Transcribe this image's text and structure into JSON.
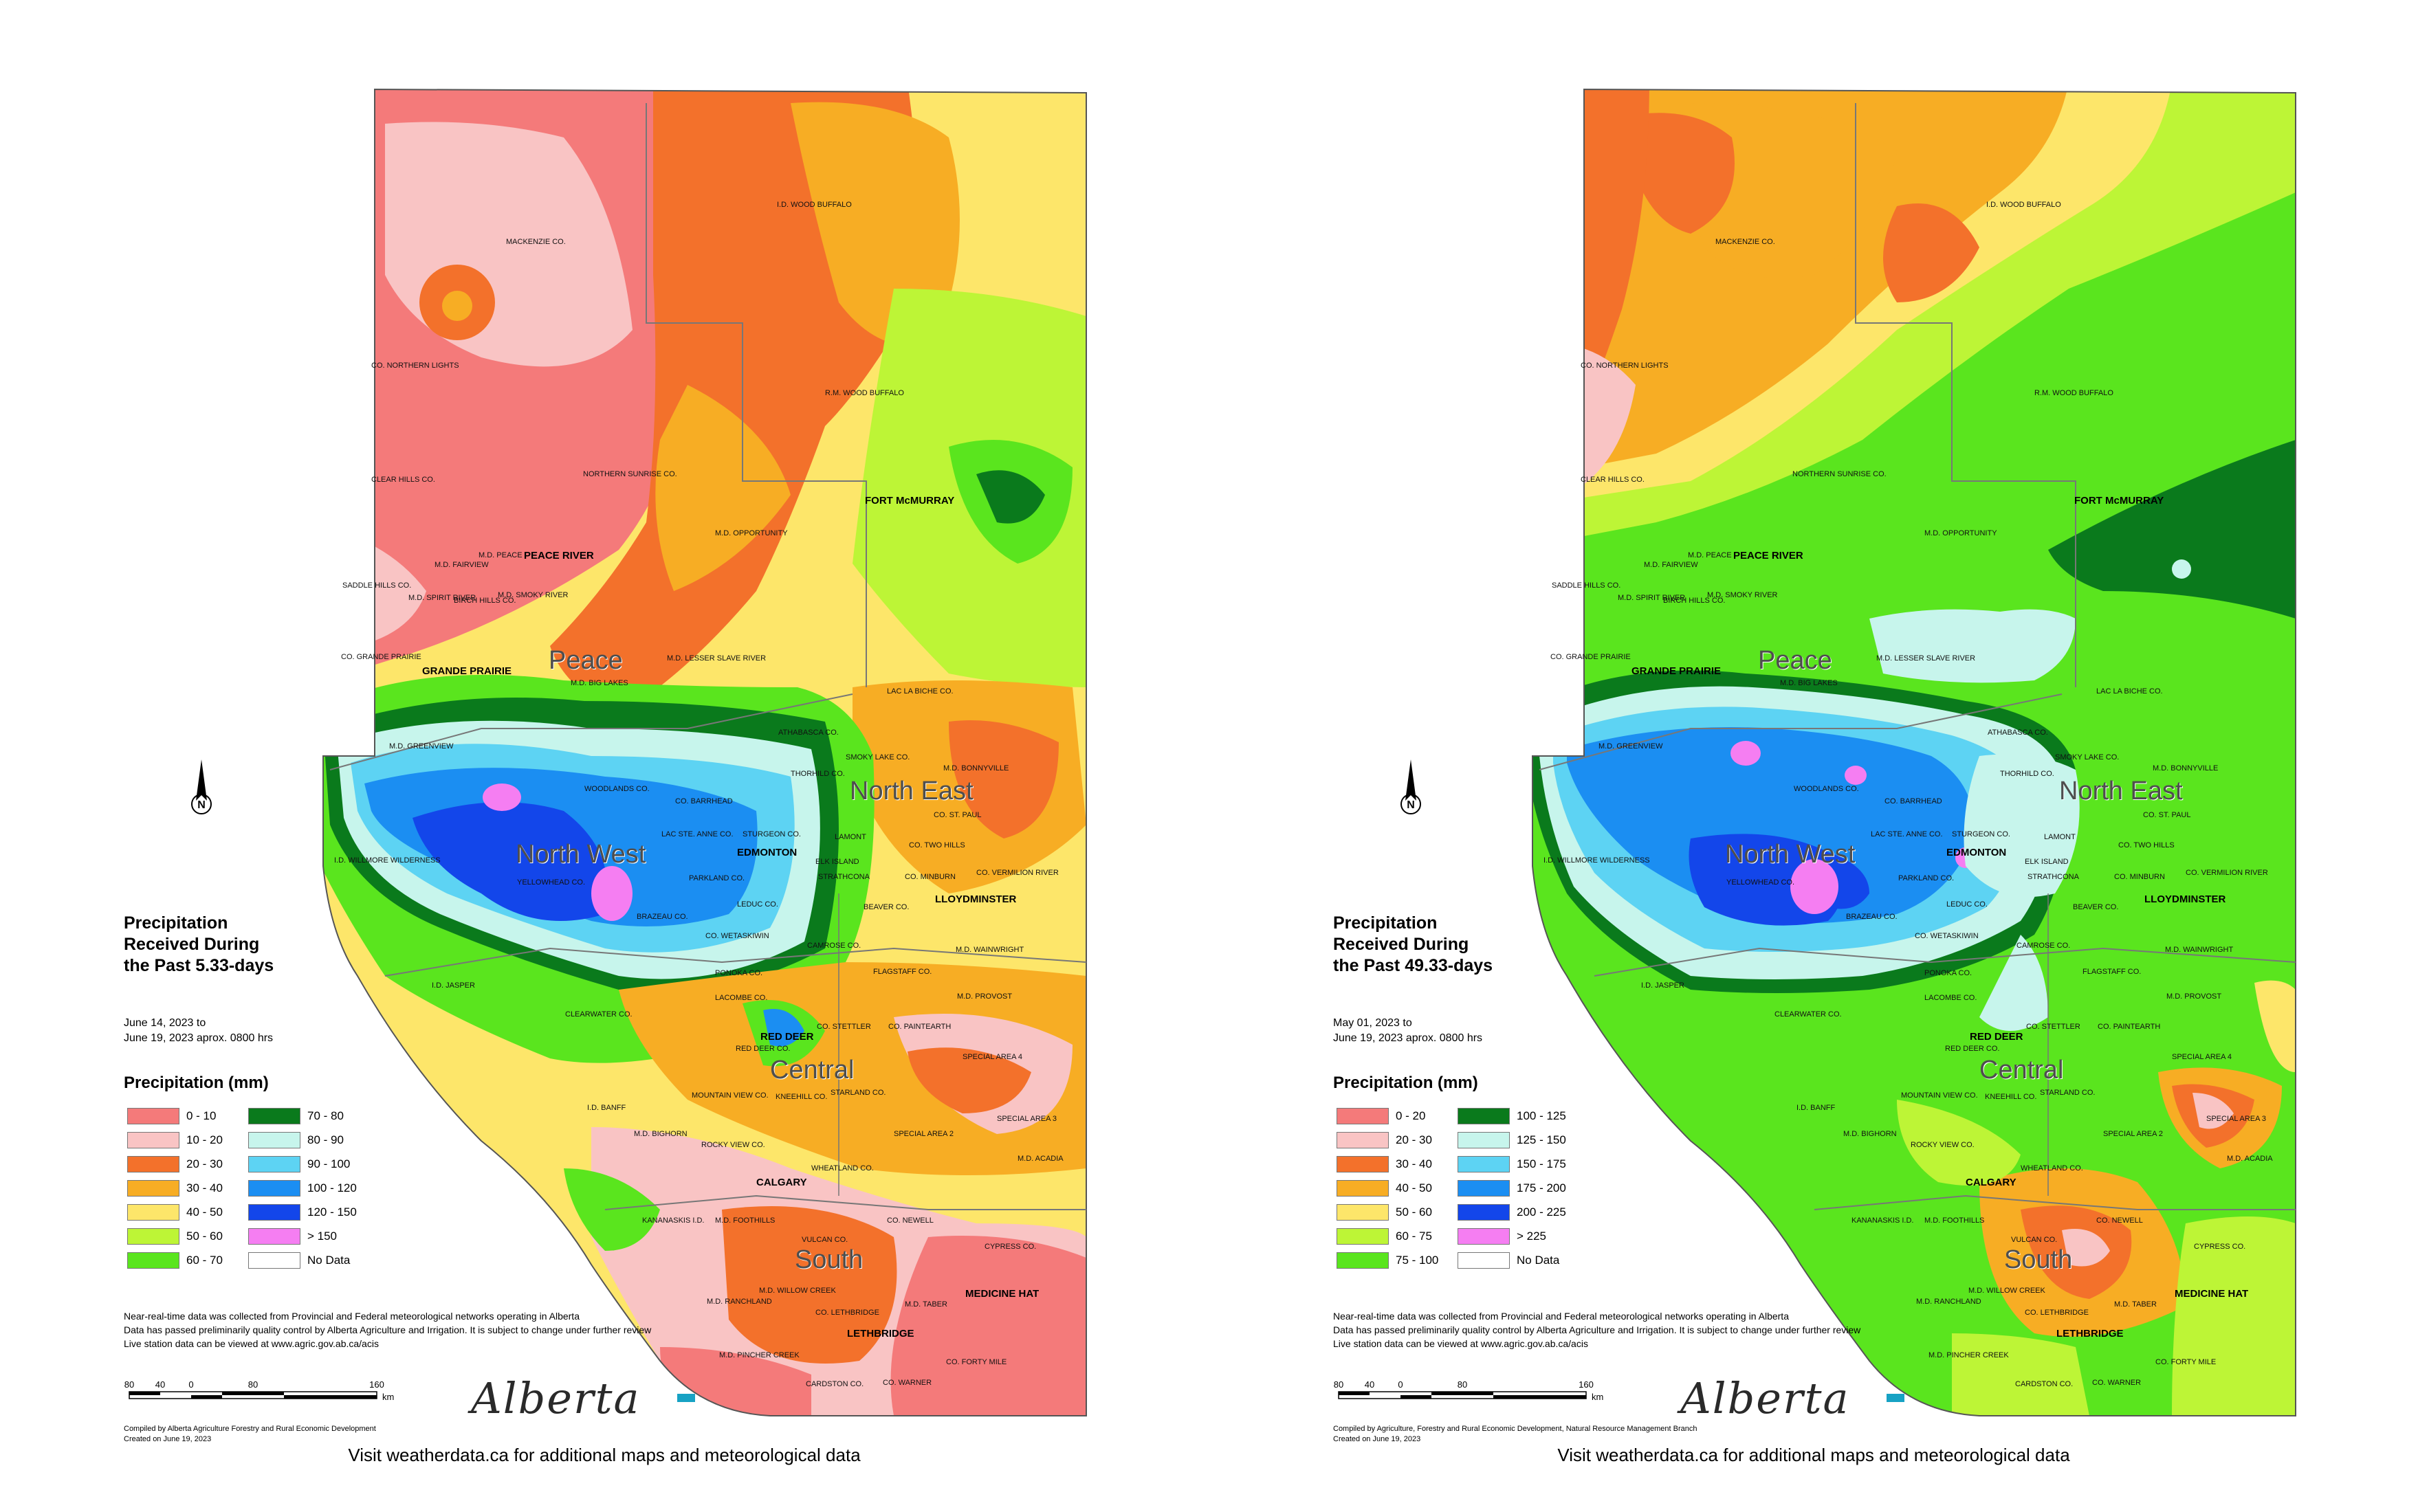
{
  "panels": [
    {
      "title": "Precipitation\nReceived During\nthe Past 5.33-days",
      "date_range": "June 14, 2023 to\nJune 19, 2023 aprox. 0800 hrs",
      "legend_header": "Precipitation (mm)",
      "legend": [
        {
          "label": "0 - 10",
          "color": "#f47a7a"
        },
        {
          "label": "10 - 20",
          "color": "#f9c4c4"
        },
        {
          "label": "20 - 30",
          "color": "#f3712b"
        },
        {
          "label": "30 - 40",
          "color": "#f7ad24"
        },
        {
          "label": "40 - 50",
          "color": "#fde66a"
        },
        {
          "label": "50 - 60",
          "color": "#bdf536"
        },
        {
          "label": "60 - 70",
          "color": "#5ae51e"
        },
        {
          "label": "70 - 80",
          "color": "#0a7a1c"
        },
        {
          "label": "80 - 90",
          "color": "#c7f5ec"
        },
        {
          "label": "90 - 100",
          "color": "#5dd3f3"
        },
        {
          "label": "100 - 120",
          "color": "#1b8ef2"
        },
        {
          "label": "120 - 150",
          "color": "#1346ea"
        },
        {
          "label": "> 150",
          "color": "#f57ef2"
        },
        {
          "label": "No Data",
          "color": "#ffffff"
        }
      ],
      "compiled": "Compiled by Alberta Agriculture Forestry and Rural Economic Development\nCreated on June 19, 2023"
    },
    {
      "title": "Precipitation\nReceived During\nthe Past 49.33-days",
      "date_range": "May 01, 2023 to\nJune 19, 2023 aprox. 0800 hrs",
      "legend_header": "Precipitation (mm)",
      "legend": [
        {
          "label": "0 - 20",
          "color": "#f47a7a"
        },
        {
          "label": "20 - 30",
          "color": "#f9c4c4"
        },
        {
          "label": "30 - 40",
          "color": "#f3712b"
        },
        {
          "label": "40 - 50",
          "color": "#f7ad24"
        },
        {
          "label": "50 - 60",
          "color": "#fde66a"
        },
        {
          "label": "60 - 75",
          "color": "#bdf536"
        },
        {
          "label": "75 - 100",
          "color": "#5ae51e"
        },
        {
          "label": "100 - 125",
          "color": "#0a7a1c"
        },
        {
          "label": "125 - 150",
          "color": "#c7f5ec"
        },
        {
          "label": "150 - 175",
          "color": "#5dd3f3"
        },
        {
          "label": "175 - 200",
          "color": "#1b8ef2"
        },
        {
          "label": "200 - 225",
          "color": "#1346ea"
        },
        {
          "label": "> 225",
          "color": "#f57ef2"
        },
        {
          "label": "No Data",
          "color": "#ffffff"
        }
      ],
      "compiled": "Compiled by Agriculture, Forestry and Rural Economic Development, Natural Resource Management Branch\nCreated on June 19, 2023"
    }
  ],
  "notes": "Near-real-time data was collected from Provincial and Federal meteorological networks operating in Alberta\nData has passed preliminarily quality control by Alberta Agriculture and Irrigation. It is subject to change under further review\nLive station data can be viewed at www.agric.gov.ab.ca/acis",
  "scale_labels": [
    "80",
    "40",
    "0",
    "80",
    "160",
    "km"
  ],
  "logo_text": "Alberta",
  "visit_text": "Visit weatherdata.ca for additional maps and meteorological data",
  "regions": [
    "Peace",
    "North West",
    "North East",
    "Central",
    "South"
  ],
  "cities": [
    "FORT McMURRAY",
    "PEACE RIVER",
    "GRANDE PRAIRIE",
    "EDMONTON",
    "LLOYDMINSTER",
    "RED DEER",
    "CALGARY",
    "MEDICINE HAT",
    "LETHBRIDGE"
  ],
  "places": [
    "MACKENZIE CO.",
    "I.D. WOOD BUFFALO",
    "CO. NORTHERN LIGHTS",
    "R.M. WOOD BUFFALO",
    "CLEAR HILLS CO.",
    "NORTHERN SUNRISE CO.",
    "M.D. OPPORTUNITY",
    "M.D. LESSER SLAVE RIVER",
    "LAC LA BICHE CO.",
    "M.D. BIG LAKES",
    "M.D. GREENVIEW",
    "I.D. WILLMORE WILDERNESS",
    "YELLOWHEAD CO.",
    "BRAZEAU CO.",
    "PARKLAND CO.",
    "CO. WETASKIWIN",
    "PONOKA CO.",
    "LACOMBE CO.",
    "CLEARWATER CO.",
    "MOUNTAIN VIEW CO.",
    "ROCKY VIEW CO.",
    "WHEATLAND CO.",
    "M.D. FOOTHILLS",
    "VULCAN CO.",
    "CO. NEWELL",
    "CYPRESS CO.",
    "M.D. TABER",
    "CO. FORTY MILE",
    "CO. WARNER",
    "CARDSTON CO.",
    "M.D. PINCHER CREEK",
    "M.D. BIGHORN",
    "I.D. BANFF",
    "I.D. JASPER",
    "KANANASKIS I.D.",
    "FLAGSTAFF CO.",
    "M.D. PROVOST",
    "SPECIAL AREA 2",
    "SPECIAL AREA 3",
    "SPECIAL AREA 4",
    "M.D. ACADIA",
    "CO. STETTLER",
    "CO. PAINTEARTH",
    "STARLAND CO.",
    "KNEEHILL CO.",
    "RED DEER CO.",
    "CAMROSE CO.",
    "BEAVER CO.",
    "M.D. WAINWRIGHT",
    "CO. MINBURN",
    "CO. TWO HILLS",
    "CO. ST. PAUL",
    "M.D. BONNYVILLE",
    "ATHABASCA CO.",
    "CO. BARRHEAD",
    "WOODLANDS CO.",
    "STURGEON CO.",
    "LAC STE. ANNE CO.",
    "LEDUC CO.",
    "SMOKY LAKE CO.",
    "THORHILD CO.",
    "M.D. PEACE",
    "M.D. FAIRVIEW",
    "SADDLE HILLS CO.",
    "M.D. SPIRIT RIVER",
    "BIRCH HILLS CO.",
    "M.D. SMOKY RIVER",
    "CO. GRANDE PRAIRIE",
    "M.D. RANCHLAND",
    "M.D. WILLOW CREEK",
    "CO. LETHBRIDGE",
    "CO. VERMILION RIVER",
    "LAMONT",
    "STRATHCONA",
    "ELK ISLAND"
  ]
}
